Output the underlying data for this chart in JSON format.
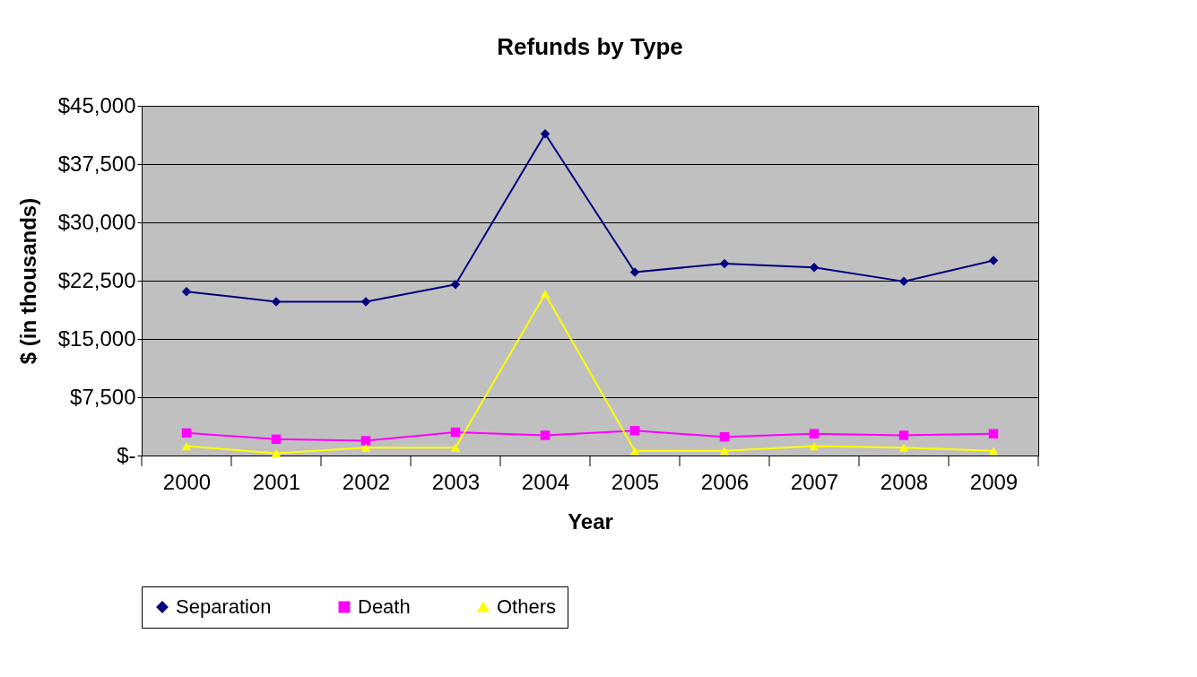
{
  "chart_data": {
    "type": "line",
    "title": "Refunds by Type",
    "xlabel": "Year",
    "ylabel": "$ (in thousands)",
    "categories": [
      "2000",
      "2001",
      "2002",
      "2003",
      "2004",
      "2005",
      "2006",
      "2007",
      "2008",
      "2009"
    ],
    "series": [
      {
        "name": "Separation",
        "color": "#000080",
        "marker": "diamond",
        "values": [
          21100,
          19800,
          19800,
          22000,
          41400,
          23600,
          24700,
          24200,
          22400,
          25100
        ]
      },
      {
        "name": "Death",
        "color": "#ff00ff",
        "marker": "square",
        "values": [
          2900,
          2100,
          1900,
          3000,
          2600,
          3200,
          2400,
          2800,
          2600,
          2800
        ]
      },
      {
        "name": "Others",
        "color": "#ffff00",
        "marker": "triangle",
        "values": [
          1200,
          300,
          1000,
          1000,
          20800,
          600,
          600,
          1200,
          1000,
          600
        ]
      }
    ],
    "ylim": [
      0,
      45000
    ],
    "yticks": [
      {
        "value": 0,
        "label": "$-"
      },
      {
        "value": 7500,
        "label": "$7,500"
      },
      {
        "value": 15000,
        "label": "$15,000"
      },
      {
        "value": 22500,
        "label": "$22,500"
      },
      {
        "value": 30000,
        "label": "$30,000"
      },
      {
        "value": 37500,
        "label": "$37,500"
      },
      {
        "value": 45000,
        "label": "$45,000"
      }
    ],
    "grid": "y",
    "legend": "bottom",
    "line_style": "solid"
  }
}
